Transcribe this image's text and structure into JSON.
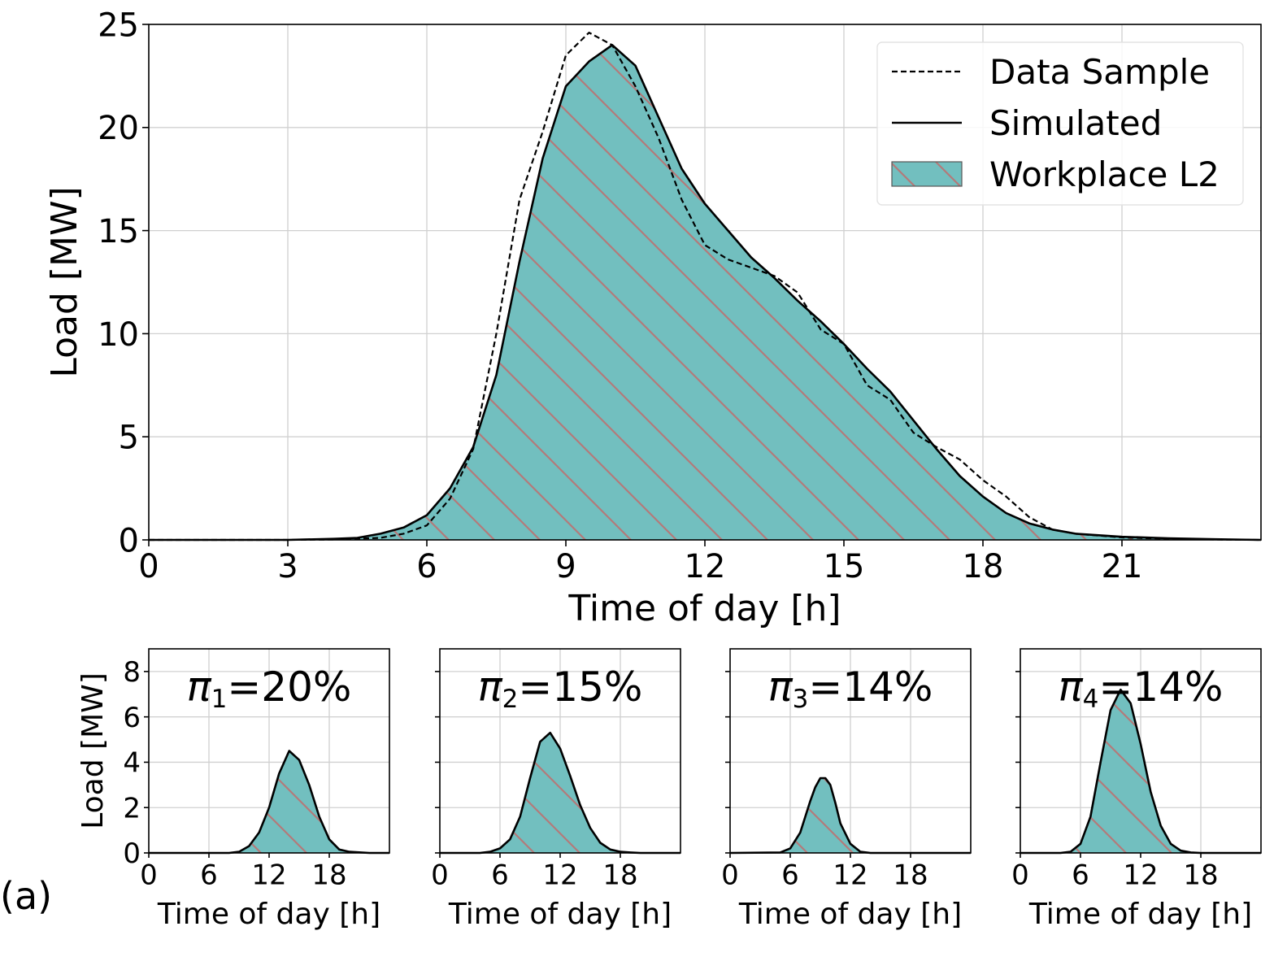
{
  "panel_label": "(a)",
  "colors": {
    "fill": "#72bfbf",
    "hatch": "#b37a7a",
    "line": "#000000",
    "grid": "#d0d0d0"
  },
  "chart_data": [
    {
      "type": "area",
      "xlabel": "Time of day [h]",
      "ylabel": "Load [MW]",
      "xlim": [
        0,
        24
      ],
      "ylim": [
        0,
        25
      ],
      "xticks": [
        0,
        3,
        6,
        9,
        12,
        15,
        18,
        21
      ],
      "yticks": [
        0,
        5,
        10,
        15,
        20,
        25
      ],
      "grid": true,
      "legend": {
        "placement": "top-right",
        "entries": [
          {
            "label": "Data Sample",
            "style": "dashed"
          },
          {
            "label": "Simulated",
            "style": "solid"
          },
          {
            "label": "Workplace L2",
            "style": "hatched-fill"
          }
        ]
      },
      "series": [
        {
          "name": "Simulated",
          "fill_name": "Workplace L2",
          "x": [
            0,
            3,
            4,
            4.5,
            5,
            5.5,
            6,
            6.5,
            7,
            7.5,
            8,
            8.5,
            9,
            9.5,
            10,
            10.5,
            11,
            11.5,
            12,
            12.5,
            13,
            13.5,
            14,
            14.5,
            15,
            15.5,
            16,
            16.5,
            17,
            17.5,
            18,
            18.5,
            19,
            19.5,
            20,
            21,
            22,
            23,
            24
          ],
          "y": [
            0,
            0,
            0.05,
            0.1,
            0.3,
            0.6,
            1.2,
            2.5,
            4.5,
            8.0,
            13.5,
            18.5,
            22.0,
            23.2,
            24.0,
            23.0,
            20.5,
            18.0,
            16.3,
            15.0,
            13.7,
            12.7,
            11.6,
            10.6,
            9.5,
            8.3,
            7.2,
            5.8,
            4.4,
            3.1,
            2.1,
            1.3,
            0.8,
            0.5,
            0.3,
            0.15,
            0.08,
            0.03,
            0.0
          ]
        },
        {
          "name": "Data Sample",
          "x": [
            0,
            3,
            4,
            5,
            5.5,
            6,
            6.5,
            7,
            7.5,
            8,
            8.5,
            9,
            9.5,
            10,
            10.5,
            11,
            11.5,
            12,
            12.5,
            13,
            13.5,
            14,
            14.5,
            15,
            15.5,
            16,
            16.5,
            17,
            17.5,
            18,
            18.5,
            19,
            19.5,
            20,
            21,
            22,
            23,
            24
          ],
          "y": [
            0,
            0,
            0.02,
            0.1,
            0.3,
            0.7,
            2.0,
            4.4,
            10.0,
            16.5,
            19.8,
            23.5,
            24.6,
            24.0,
            22.0,
            19.5,
            16.5,
            14.3,
            13.6,
            13.2,
            12.8,
            12.0,
            10.2,
            9.5,
            7.5,
            6.8,
            5.2,
            4.5,
            3.9,
            2.9,
            2.1,
            1.1,
            0.5,
            0.3,
            0.12,
            0.05,
            0.02,
            0.0
          ]
        }
      ]
    },
    {
      "type": "area",
      "title": "π1=20%",
      "title_symbol": "π",
      "title_sub": "1",
      "title_rest": "=20%",
      "xlabel": "Time of day [h]",
      "ylabel": "Load [MW]",
      "xlim": [
        0,
        24
      ],
      "ylim": [
        0,
        9
      ],
      "xticks": [
        0,
        6,
        12,
        18
      ],
      "yticks": [
        0,
        2,
        4,
        6,
        8
      ],
      "grid": true,
      "series": [
        {
          "x": [
            0,
            8,
            9,
            10,
            11,
            12,
            13,
            14,
            15,
            16,
            17,
            18,
            19,
            20,
            22,
            24
          ],
          "y": [
            0,
            0,
            0.05,
            0.3,
            0.9,
            2.0,
            3.5,
            4.5,
            4.1,
            3.0,
            1.6,
            0.6,
            0.15,
            0.05,
            0,
            0
          ]
        }
      ]
    },
    {
      "type": "area",
      "title": "π2=15%",
      "title_symbol": "π",
      "title_sub": "2",
      "title_rest": "=15%",
      "xlabel": "Time of day [h]",
      "ylabel": "",
      "xlim": [
        0,
        24
      ],
      "ylim": [
        0,
        9
      ],
      "xticks": [
        0,
        6,
        12,
        18
      ],
      "yticks": [
        0,
        2,
        4,
        6,
        8
      ],
      "grid": true,
      "series": [
        {
          "x": [
            0,
            4,
            5,
            6,
            7,
            8,
            9,
            10,
            11,
            12,
            13,
            14,
            15,
            16,
            17,
            18,
            19,
            20,
            24
          ],
          "y": [
            0,
            0,
            0.05,
            0.2,
            0.6,
            1.6,
            3.3,
            4.9,
            5.3,
            4.6,
            3.4,
            2.1,
            1.1,
            0.45,
            0.15,
            0.05,
            0.02,
            0,
            0
          ]
        }
      ]
    },
    {
      "type": "area",
      "title": "π3=14%",
      "title_symbol": "π",
      "title_sub": "3",
      "title_rest": "=14%",
      "xlabel": "Time of day [h]",
      "ylabel": "",
      "xlim": [
        0,
        24
      ],
      "ylim": [
        0,
        9
      ],
      "xticks": [
        0,
        6,
        12,
        18
      ],
      "yticks": [
        0,
        2,
        4,
        6,
        8
      ],
      "grid": true,
      "series": [
        {
          "x": [
            0,
            5,
            6,
            7,
            8,
            8.5,
            9,
            9.5,
            10,
            10.5,
            11,
            12,
            13,
            14,
            24
          ],
          "y": [
            0,
            0.02,
            0.2,
            0.9,
            2.3,
            2.9,
            3.3,
            3.3,
            3.0,
            2.2,
            1.3,
            0.4,
            0.05,
            0,
            0
          ]
        }
      ]
    },
    {
      "type": "area",
      "title": "π4=14%",
      "title_symbol": "π",
      "title_sub": "4",
      "title_rest": "=14%",
      "xlabel": "Time of day [h]",
      "ylabel": "",
      "xlim": [
        0,
        24
      ],
      "ylim": [
        0,
        9
      ],
      "xticks": [
        0,
        6,
        12,
        18
      ],
      "yticks": [
        0,
        2,
        4,
        6,
        8
      ],
      "grid": true,
      "series": [
        {
          "x": [
            0,
            4,
            5,
            6,
            7,
            8,
            9,
            10,
            11,
            12,
            13,
            14,
            15,
            16,
            17,
            18,
            24
          ],
          "y": [
            0,
            0,
            0.05,
            0.4,
            1.6,
            4.0,
            6.3,
            7.2,
            6.6,
            4.8,
            2.7,
            1.2,
            0.4,
            0.1,
            0.02,
            0,
            0
          ]
        }
      ]
    }
  ]
}
